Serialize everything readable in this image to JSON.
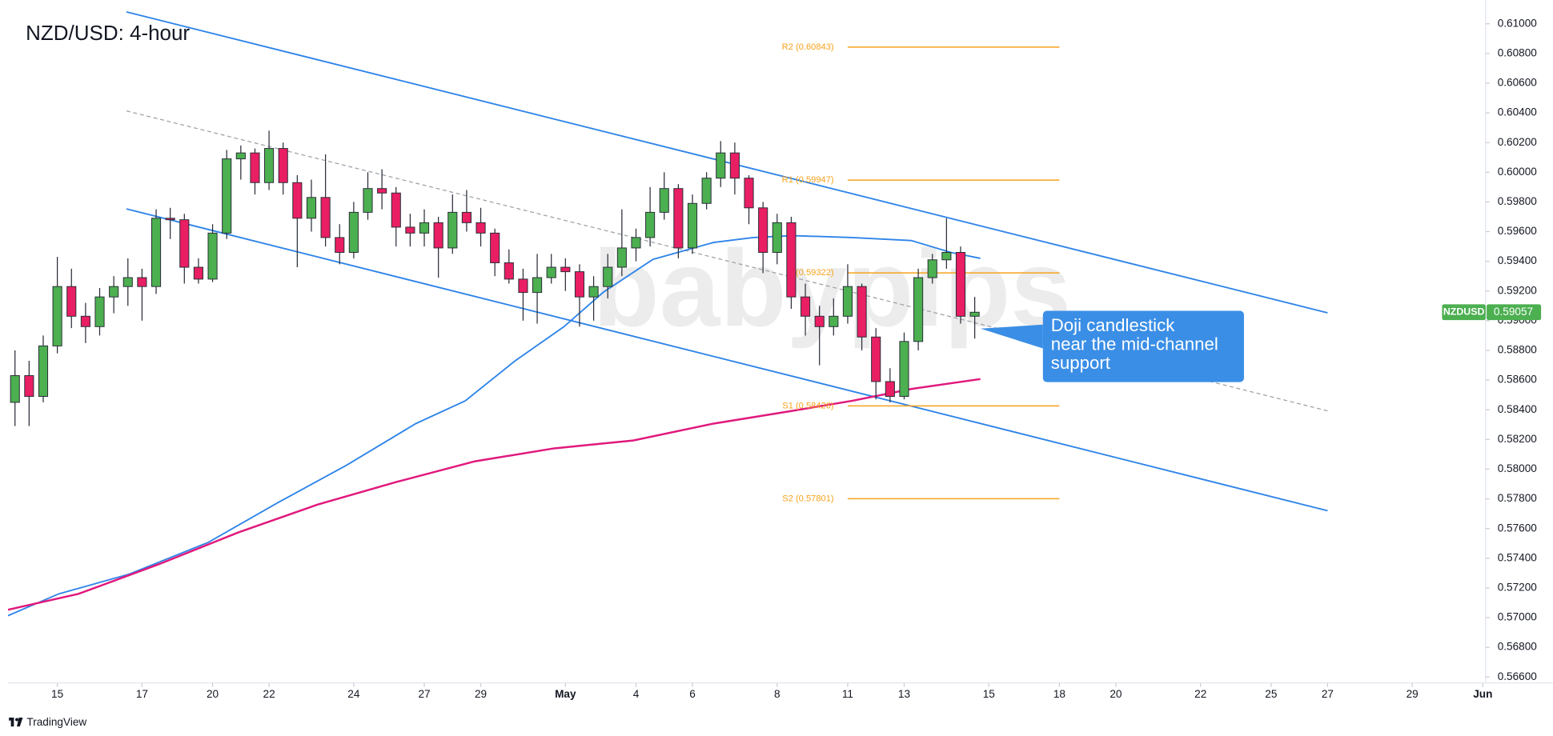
{
  "chart_data": {
    "type": "candlestick",
    "title": "NZD/USD: 4-hour",
    "symbol": "NZDUSD",
    "watermark": "babypips",
    "footer": "TradingView",
    "annotation": {
      "lines": [
        "Doji candlestick",
        "near the mid-channel",
        "support"
      ]
    },
    "up_color": "#4caf50",
    "down_color": "#e91e63",
    "grid": false,
    "xlim": [
      -3.5,
      101.2
    ],
    "ylim": [
      0.5656,
      0.6116
    ],
    "xticks": [
      {
        "value": 0,
        "label": "15"
      },
      {
        "value": 6,
        "label": "17"
      },
      {
        "value": 11,
        "label": "20"
      },
      {
        "value": 15,
        "label": "22"
      },
      {
        "value": 21,
        "label": "24"
      },
      {
        "value": 26,
        "label": "27"
      },
      {
        "value": 30,
        "label": "29"
      },
      {
        "value": 36,
        "label": "May"
      },
      {
        "value": 41,
        "label": "4"
      },
      {
        "value": 45,
        "label": "6"
      },
      {
        "value": 51,
        "label": "8"
      },
      {
        "value": 56,
        "label": "11"
      },
      {
        "value": 60,
        "label": "13"
      },
      {
        "value": 66,
        "label": "15"
      },
      {
        "value": 71,
        "label": "18"
      },
      {
        "value": 75,
        "label": "20"
      },
      {
        "value": 81,
        "label": "22"
      },
      {
        "value": 86,
        "label": "25"
      },
      {
        "value": 90,
        "label": "27"
      },
      {
        "value": 96,
        "label": "29"
      },
      {
        "value": 101,
        "label": "Jun"
      }
    ],
    "yticks": [
      {
        "value": 0.61,
        "label": "0.61000"
      },
      {
        "value": 0.608,
        "label": "0.60800"
      },
      {
        "value": 0.606,
        "label": "0.60600"
      },
      {
        "value": 0.604,
        "label": "0.60400"
      },
      {
        "value": 0.602,
        "label": "0.60200"
      },
      {
        "value": 0.6,
        "label": "0.60000"
      },
      {
        "value": 0.598,
        "label": "0.59800"
      },
      {
        "value": 0.596,
        "label": "0.59600"
      },
      {
        "value": 0.594,
        "label": "0.59400"
      },
      {
        "value": 0.592,
        "label": "0.59200"
      },
      {
        "value": 0.59,
        "label": "0.59000"
      },
      {
        "value": 0.588,
        "label": "0.58800"
      },
      {
        "value": 0.586,
        "label": "0.58600"
      },
      {
        "value": 0.584,
        "label": "0.58400"
      },
      {
        "value": 0.582,
        "label": "0.58200"
      },
      {
        "value": 0.58,
        "label": "0.58000"
      },
      {
        "value": 0.578,
        "label": "0.57800"
      },
      {
        "value": 0.576,
        "label": "0.57600"
      },
      {
        "value": 0.574,
        "label": "0.57400"
      },
      {
        "value": 0.572,
        "label": "0.57200"
      },
      {
        "value": 0.57,
        "label": "0.57000"
      },
      {
        "value": 0.568,
        "label": "0.56800"
      },
      {
        "value": 0.566,
        "label": "0.56600"
      }
    ],
    "x": [
      -3,
      -2,
      -1,
      0,
      1,
      2,
      3,
      4,
      5,
      6,
      7,
      8,
      9,
      10,
      11,
      12,
      13,
      14,
      15,
      16,
      17,
      18,
      19,
      20,
      21,
      22,
      23,
      24,
      25,
      26,
      27,
      28,
      29,
      30,
      31,
      32,
      33,
      34,
      35,
      36,
      37,
      38,
      39,
      40,
      41,
      42,
      43,
      44,
      45,
      46,
      47,
      48,
      49,
      50,
      51,
      52,
      53,
      54,
      55,
      56,
      57,
      58,
      59,
      60,
      61,
      62,
      63,
      64,
      65
    ],
    "open": [
      0.5845,
      0.5863,
      0.5849,
      0.5883,
      0.5923,
      0.5903,
      0.5896,
      0.5916,
      0.5923,
      0.5929,
      0.5923,
      0.5969,
      0.5968,
      0.5936,
      0.5928,
      0.5959,
      0.6009,
      0.6013,
      0.5993,
      0.6016,
      0.5993,
      0.5969,
      0.5983,
      0.5956,
      0.5946,
      0.5973,
      0.5989,
      0.5986,
      0.5963,
      0.5959,
      0.5966,
      0.5949,
      0.5973,
      0.5966,
      0.5959,
      0.5939,
      0.5928,
      0.5919,
      0.5929,
      0.5936,
      0.5933,
      0.5916,
      0.5923,
      0.5936,
      0.5949,
      0.5956,
      0.5973,
      0.5989,
      0.5949,
      0.5979,
      0.5996,
      0.6013,
      0.5996,
      0.5976,
      0.5946,
      0.5966,
      0.5916,
      0.5903,
      0.5896,
      0.5903,
      0.5923,
      0.5889,
      0.5859,
      0.5849,
      0.5886,
      0.5929,
      0.5941,
      0.5946,
      0.5903
    ],
    "high": [
      0.588,
      0.5873,
      0.589,
      0.5943,
      0.5935,
      0.5912,
      0.5922,
      0.593,
      0.5942,
      0.5935,
      0.5975,
      0.5976,
      0.5972,
      0.5942,
      0.5965,
      0.6015,
      0.6018,
      0.6016,
      0.6028,
      0.602,
      0.5998,
      0.5995,
      0.6012,
      0.5965,
      0.598,
      0.6,
      0.6002,
      0.599,
      0.5972,
      0.5975,
      0.597,
      0.5985,
      0.5988,
      0.5976,
      0.5962,
      0.5948,
      0.5935,
      0.5945,
      0.5945,
      0.5942,
      0.5938,
      0.593,
      0.5945,
      0.5975,
      0.5962,
      0.599,
      0.6,
      0.5992,
      0.5985,
      0.6,
      0.6021,
      0.602,
      0.5998,
      0.598,
      0.5972,
      0.597,
      0.5925,
      0.591,
      0.5915,
      0.5938,
      0.5925,
      0.5895,
      0.5868,
      0.5892,
      0.5935,
      0.5945,
      0.5969,
      0.595,
      0.5916
    ],
    "low": [
      0.5829,
      0.5829,
      0.5845,
      0.5878,
      0.5895,
      0.5885,
      0.589,
      0.5905,
      0.591,
      0.59,
      0.5918,
      0.5955,
      0.5925,
      0.5925,
      0.5926,
      0.5955,
      0.5995,
      0.5985,
      0.5988,
      0.5985,
      0.5936,
      0.596,
      0.595,
      0.5938,
      0.5942,
      0.5968,
      0.5975,
      0.595,
      0.595,
      0.595,
      0.5929,
      0.5945,
      0.596,
      0.595,
      0.593,
      0.5925,
      0.59,
      0.5898,
      0.5925,
      0.592,
      0.5896,
      0.59,
      0.5915,
      0.593,
      0.594,
      0.595,
      0.5968,
      0.5942,
      0.5945,
      0.5975,
      0.599,
      0.5985,
      0.5965,
      0.5932,
      0.5938,
      0.5908,
      0.589,
      0.587,
      0.589,
      0.5898,
      0.588,
      0.5847,
      0.5845,
      0.5847,
      0.588,
      0.5925,
      0.5935,
      0.5898,
      0.5888
    ],
    "close": [
      0.5863,
      0.5849,
      0.5883,
      0.5923,
      0.5903,
      0.5896,
      0.5916,
      0.5923,
      0.5929,
      0.5923,
      0.5969,
      0.5968,
      0.5936,
      0.5928,
      0.5959,
      0.6009,
      0.6013,
      0.5993,
      0.6016,
      0.5993,
      0.5969,
      0.5983,
      0.5956,
      0.5946,
      0.5973,
      0.5989,
      0.5986,
      0.5963,
      0.5959,
      0.5966,
      0.5949,
      0.5973,
      0.5966,
      0.5959,
      0.5939,
      0.5928,
      0.5919,
      0.5929,
      0.5936,
      0.5933,
      0.5916,
      0.5923,
      0.5936,
      0.5949,
      0.5956,
      0.5973,
      0.5989,
      0.5949,
      0.5979,
      0.5996,
      0.6013,
      0.5996,
      0.5976,
      0.5946,
      0.5966,
      0.5916,
      0.5903,
      0.5896,
      0.5903,
      0.5923,
      0.5889,
      0.5859,
      0.5849,
      0.5886,
      0.5929,
      0.5941,
      0.5946,
      0.5903,
      0.59057
    ],
    "moving_averages": [
      {
        "color": "#2e84e8",
        "x": [
          -3.5,
          0.1,
          5.1,
          10.7,
          15.6,
          20.5,
          25.4,
          28.9,
          32.4,
          35.9,
          38.7,
          42.2,
          46.5,
          49.3,
          52.1,
          56.3,
          60.5,
          63.3,
          65.4
        ],
        "values": [
          0.57013,
          0.5716,
          0.57293,
          0.57507,
          0.57773,
          0.58027,
          0.58307,
          0.5846,
          0.58727,
          0.5896,
          0.59193,
          0.59413,
          0.59527,
          0.5956,
          0.59573,
          0.5956,
          0.5954,
          0.5946,
          0.5942
        ]
      },
      {
        "color": "#e0197d",
        "x": [
          -3.5,
          1.5,
          7.2,
          12.8,
          18.4,
          24,
          29.6,
          35.2,
          40.8,
          46.5,
          52.1,
          56.3,
          60.5,
          65.4
        ],
        "values": [
          0.57053,
          0.5716,
          0.5736,
          0.57573,
          0.5776,
          0.57913,
          0.58053,
          0.5814,
          0.58193,
          0.58307,
          0.58393,
          0.5846,
          0.5854,
          0.58607
        ]
      }
    ],
    "channel": {
      "color": "#2e84e8",
      "x": [
        4.9,
        90
      ],
      "upper": [
        0.6108,
        0.59053
      ],
      "mid": [
        0.60413,
        0.58393
      ],
      "lower": [
        0.59753,
        0.5772
      ]
    },
    "pivot_color": "#f7a21b",
    "pivot_range": [
      56,
      71
    ],
    "pivots": [
      {
        "label": "R2 (0.60843)",
        "value": 0.60843
      },
      {
        "label": "R1 (0.59947)",
        "value": 0.59947
      },
      {
        "label": "P (0.59322)",
        "value": 0.59322
      },
      {
        "label": "S1 (0.58426)",
        "value": 0.58426
      },
      {
        "label": "S2 (0.57801)",
        "value": 0.57801
      }
    ]
  }
}
